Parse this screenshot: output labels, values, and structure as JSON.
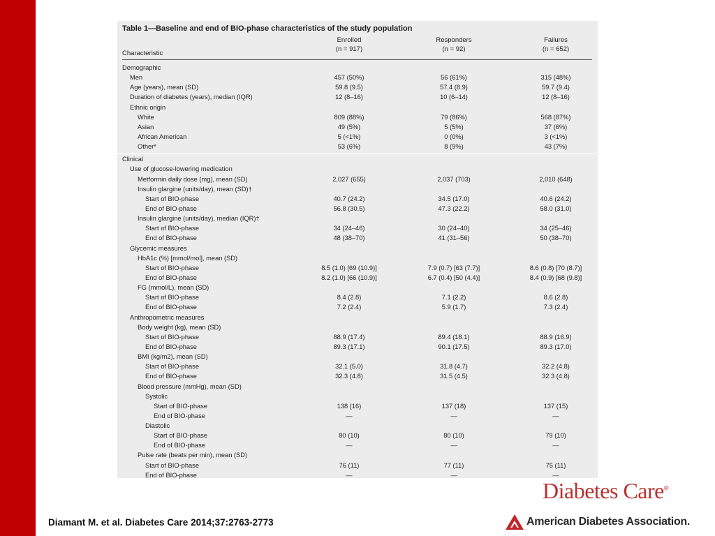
{
  "table": {
    "title": "Table 1—Baseline and end of BIO-phase characteristics of the study population",
    "headers": {
      "characteristic": "Characteristic",
      "columns": [
        {
          "name": "Enrolled",
          "n": "(n = 917)"
        },
        {
          "name": "Responders",
          "n": "(n = 92)"
        },
        {
          "name": "Failures",
          "n": "(n = 652)"
        }
      ]
    },
    "demographic_rows": [
      {
        "label": "Demographic",
        "level": 0,
        "values": [
          "",
          "",
          ""
        ]
      },
      {
        "label": "Men",
        "level": 1,
        "values": [
          "457 (50%)",
          "56 (61%)",
          "315 (48%)"
        ]
      },
      {
        "label": "Age (years), mean (SD)",
        "level": 1,
        "values": [
          "59.8 (9.5)",
          "57.4 (8.9)",
          "59.7 (9.4)"
        ]
      },
      {
        "label": "Duration of diabetes (years), median (IQR)",
        "level": 1,
        "values": [
          "12 (8–16)",
          "10 (6–14)",
          "12 (8–16)"
        ]
      },
      {
        "label": "Ethnic origin",
        "level": 1,
        "values": [
          "",
          "",
          ""
        ]
      },
      {
        "label": "White",
        "level": 2,
        "values": [
          "809 (88%)",
          "79 (86%)",
          "568 (87%)"
        ]
      },
      {
        "label": "Asian",
        "level": 2,
        "values": [
          "49 (5%)",
          "5 (5%)",
          "37 (6%)"
        ]
      },
      {
        "label": "African American",
        "level": 2,
        "values": [
          "5 (<1%)",
          "0 (0%)",
          "3 (<1%)"
        ]
      },
      {
        "label": "Other*",
        "level": 2,
        "values": [
          "53 (6%)",
          "8 (9%)",
          "43 (7%)"
        ]
      }
    ],
    "clinical_rows": [
      {
        "label": "Clinical",
        "level": 0,
        "values": [
          "",
          "",
          ""
        ]
      },
      {
        "label": "Use of glucose-lowering medication",
        "level": 1,
        "values": [
          "",
          "",
          ""
        ]
      },
      {
        "label": "Metformin daily dose (mg), mean (SD)",
        "level": 2,
        "values": [
          "2,027 (655)",
          "2,037 (703)",
          "2,010 (648)"
        ]
      },
      {
        "label": "Insulin glargine (units/day), mean (SD)†",
        "level": 2,
        "values": [
          "",
          "",
          ""
        ]
      },
      {
        "label": "Start of BIO-phase",
        "level": 3,
        "values": [
          "40.7 (24.2)",
          "34.5 (17.0)",
          "40.6 (24.2)"
        ]
      },
      {
        "label": "End of BIO-phase",
        "level": 3,
        "values": [
          "56.8 (30.5)",
          "47.3 (22.2)",
          "58.0 (31.0)"
        ]
      },
      {
        "label": "Insulin glargine (units/day), median (IQR)†",
        "level": 2,
        "values": [
          "",
          "",
          ""
        ]
      },
      {
        "label": "Start of BIO-phase",
        "level": 3,
        "values": [
          "34 (24–46)",
          "30 (24–40)",
          "34 (25–46)"
        ]
      },
      {
        "label": "End of BIO-phase",
        "level": 3,
        "values": [
          "48 (38–70)",
          "41 (31–56)",
          "50 (38–70)"
        ]
      },
      {
        "label": "Glycemic measures",
        "level": 1,
        "values": [
          "",
          "",
          ""
        ]
      },
      {
        "label": "HbA1c (%) [mmol/mol], mean (SD)",
        "level": 2,
        "values": [
          "",
          "",
          ""
        ]
      },
      {
        "label": "Start of BIO-phase",
        "level": 3,
        "values": [
          "8.5 (1.0) [69 (10.9)]",
          "7.9 (0.7) [63 (7.7)]",
          "8.6 (0.8) [70 (8.7)]"
        ]
      },
      {
        "label": "End of BIO-phase",
        "level": 3,
        "values": [
          "8.2 (1.0) [66 (10.9)]",
          "6.7 (0.4) [50 (4.4)]",
          "8.4 (0.9) [68 (9.8)]"
        ]
      },
      {
        "label": "FG (mmol/L), mean (SD)",
        "level": 2,
        "values": [
          "",
          "",
          ""
        ]
      },
      {
        "label": "Start of BIO-phase",
        "level": 3,
        "values": [
          "8.4 (2.8)",
          "7.1 (2.2)",
          "8.6 (2.8)"
        ]
      },
      {
        "label": "End of BIO-phase",
        "level": 3,
        "values": [
          "7.2 (2.4)",
          "5.9 (1.7)",
          "7.3 (2.4)"
        ]
      },
      {
        "label": "Anthropometric measures",
        "level": 1,
        "values": [
          "",
          "",
          ""
        ]
      },
      {
        "label": "Body weight (kg), mean (SD)",
        "level": 2,
        "values": [
          "",
          "",
          ""
        ]
      },
      {
        "label": "Start of BIO-phase",
        "level": 3,
        "values": [
          "88.9 (17.4)",
          "89.4 (18.1)",
          "88.9 (16.9)"
        ]
      },
      {
        "label": "End of BIO-phase",
        "level": 3,
        "values": [
          "89.3 (17.1)",
          "90.1 (17.5)",
          "89.3 (17.0)"
        ]
      },
      {
        "label": "BMI (kg/m2), mean (SD)",
        "level": 2,
        "values": [
          "",
          "",
          ""
        ]
      },
      {
        "label": "Start of BIO-phase",
        "level": 3,
        "values": [
          "32.1 (5.0)",
          "31.8 (4.7)",
          "32.2 (4.8)"
        ]
      },
      {
        "label": "End of BIO-phase",
        "level": 3,
        "values": [
          "32.3 (4.8)",
          "31.5 (4.5)",
          "32.3 (4.8)"
        ]
      },
      {
        "label": "Blood pressure (mmHg), mean (SD)",
        "level": 2,
        "values": [
          "",
          "",
          ""
        ]
      },
      {
        "label": "Systolic",
        "level": 3,
        "values": [
          "",
          "",
          ""
        ]
      },
      {
        "label": "Start of BIO-phase",
        "level": 4,
        "values": [
          "138 (16)",
          "137 (18)",
          "137 (15)"
        ]
      },
      {
        "label": "End of BIO-phase",
        "level": 4,
        "values": [
          "—",
          "—",
          "—"
        ]
      },
      {
        "label": "Diastolic",
        "level": 3,
        "values": [
          "",
          "",
          ""
        ]
      },
      {
        "label": "Start of BIO-phase",
        "level": 4,
        "values": [
          "80 (10)",
          "80 (10)",
          "79 (10)"
        ]
      },
      {
        "label": "End of BIO-phase",
        "level": 4,
        "values": [
          "—",
          "—",
          "—"
        ]
      },
      {
        "label": "Pulse rate (beats per min), mean (SD)",
        "level": 2,
        "values": [
          "",
          "",
          ""
        ]
      },
      {
        "label": "Start of BIO-phase",
        "level": 3,
        "values": [
          "76 (11)",
          "77 (11)",
          "75 (11)"
        ]
      },
      {
        "label": "End of BIO-phase",
        "level": 3,
        "values": [
          "—",
          "—",
          "—"
        ]
      }
    ]
  },
  "citation": "Diamant M. et al. Diabetes Care 2014;37:2763-2773",
  "logos": {
    "journal": "Diabetes Care",
    "journal_mark": "®",
    "association": "American Diabetes Association",
    "association_mark": "."
  },
  "colors": {
    "left_bar": "#c00000",
    "table_background": "#ececec",
    "journal_logo": "#b6322f",
    "association_logo_symbol": "#c0262d"
  }
}
